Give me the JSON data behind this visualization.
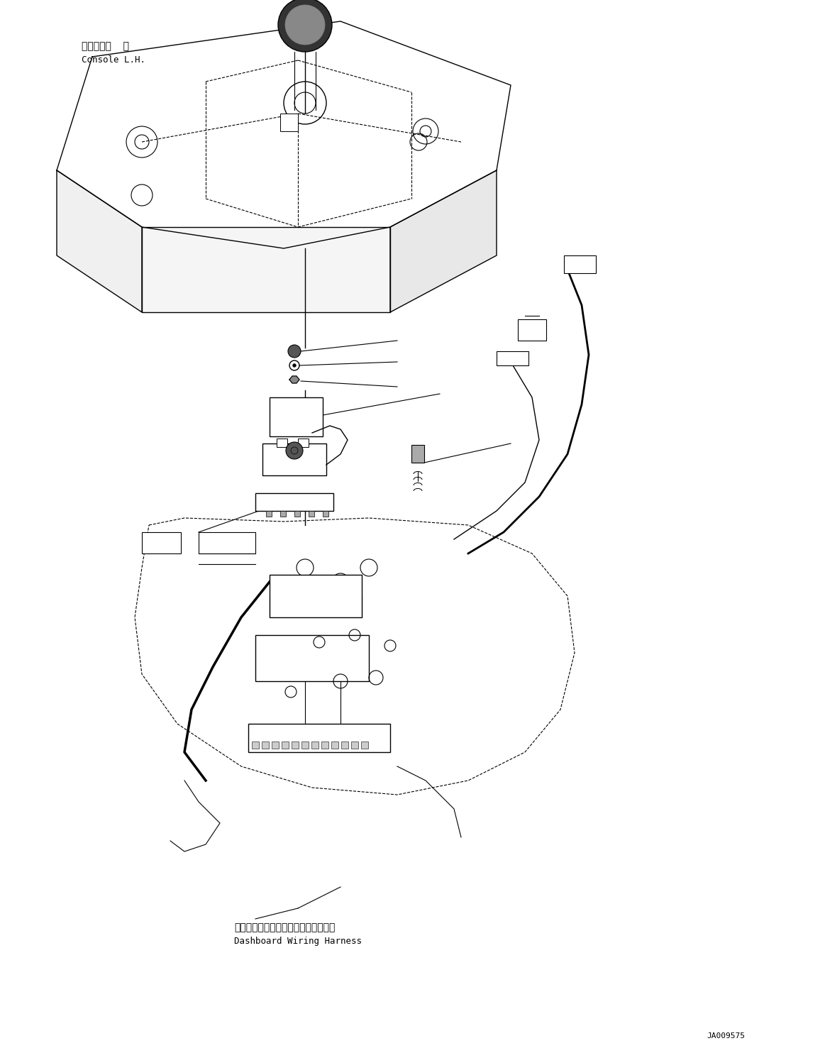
{
  "bg_color": "#ffffff",
  "line_color": "#000000",
  "fig_width": 11.63,
  "fig_height": 14.84,
  "dpi": 100,
  "label_console_jp": "コンソール  左",
  "label_console_en": "Console L.H.",
  "label_dashboard_jp": "ダッシュボードワイヤリングハーネス",
  "label_dashboard_en": "Dashboard Wiring Harness",
  "label_part_num": "JA009575",
  "font_size_label": 9,
  "font_size_part": 8
}
